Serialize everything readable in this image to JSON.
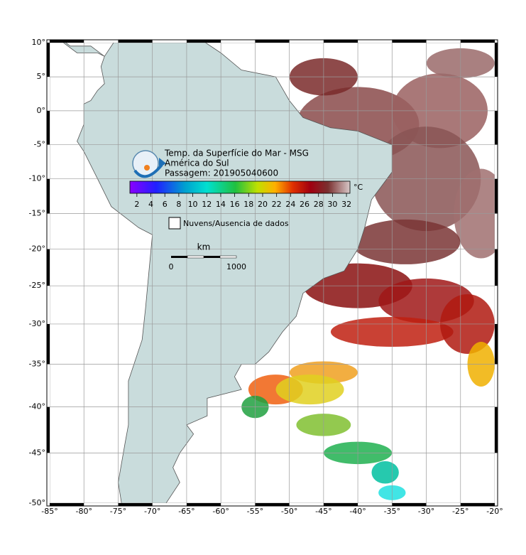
{
  "map": {
    "title": "Temp. da Superfície do Mar - MSG",
    "region": "América do Sul",
    "pass": "Passagem: 201905040600",
    "xlim": [
      -85,
      -20
    ],
    "ylim": [
      -50,
      10
    ],
    "xticks": [
      {
        "value": -85,
        "label": "-85°"
      },
      {
        "value": -80,
        "label": "-80°"
      },
      {
        "value": -75,
        "label": "-75°"
      },
      {
        "value": -70,
        "label": "-70°"
      },
      {
        "value": -65,
        "label": "-65°"
      },
      {
        "value": -60,
        "label": "-60°"
      },
      {
        "value": -55,
        "label": "-55°"
      },
      {
        "value": -50,
        "label": "-50°"
      },
      {
        "value": -45,
        "label": "-45°"
      },
      {
        "value": -40,
        "label": "-40°"
      },
      {
        "value": -35,
        "label": "-35°"
      },
      {
        "value": -30,
        "label": "-30°"
      },
      {
        "value": -25,
        "label": "-25°"
      },
      {
        "value": -20,
        "label": "-20°"
      }
    ],
    "yticks": [
      {
        "value": 10,
        "label": "10°"
      },
      {
        "value": 5,
        "label": "5°"
      },
      {
        "value": 0,
        "label": "0°"
      },
      {
        "value": -5,
        "label": "-5°"
      },
      {
        "value": -10,
        "label": "-10°"
      },
      {
        "value": -15,
        "label": "-15°"
      },
      {
        "value": -20,
        "label": "-20°"
      },
      {
        "value": -25,
        "label": "-25°"
      },
      {
        "value": -30,
        "label": "-30°"
      },
      {
        "value": -35,
        "label": "-35°"
      },
      {
        "value": -40,
        "label": "-40°"
      },
      {
        "value": -45,
        "label": "-45°"
      },
      {
        "value": -50,
        "label": "-50°"
      }
    ],
    "grid": true
  },
  "colorbar": {
    "unit": "°C",
    "range": [
      1,
      32.5
    ],
    "ticks": [
      2,
      4,
      6,
      8,
      10,
      12,
      14,
      16,
      18,
      20,
      22,
      24,
      26,
      28,
      30,
      32
    ]
  },
  "legend": "Nuvens/Ausencia de dados",
  "scale": {
    "unit": "km",
    "start": 0,
    "end": 1000
  }
}
